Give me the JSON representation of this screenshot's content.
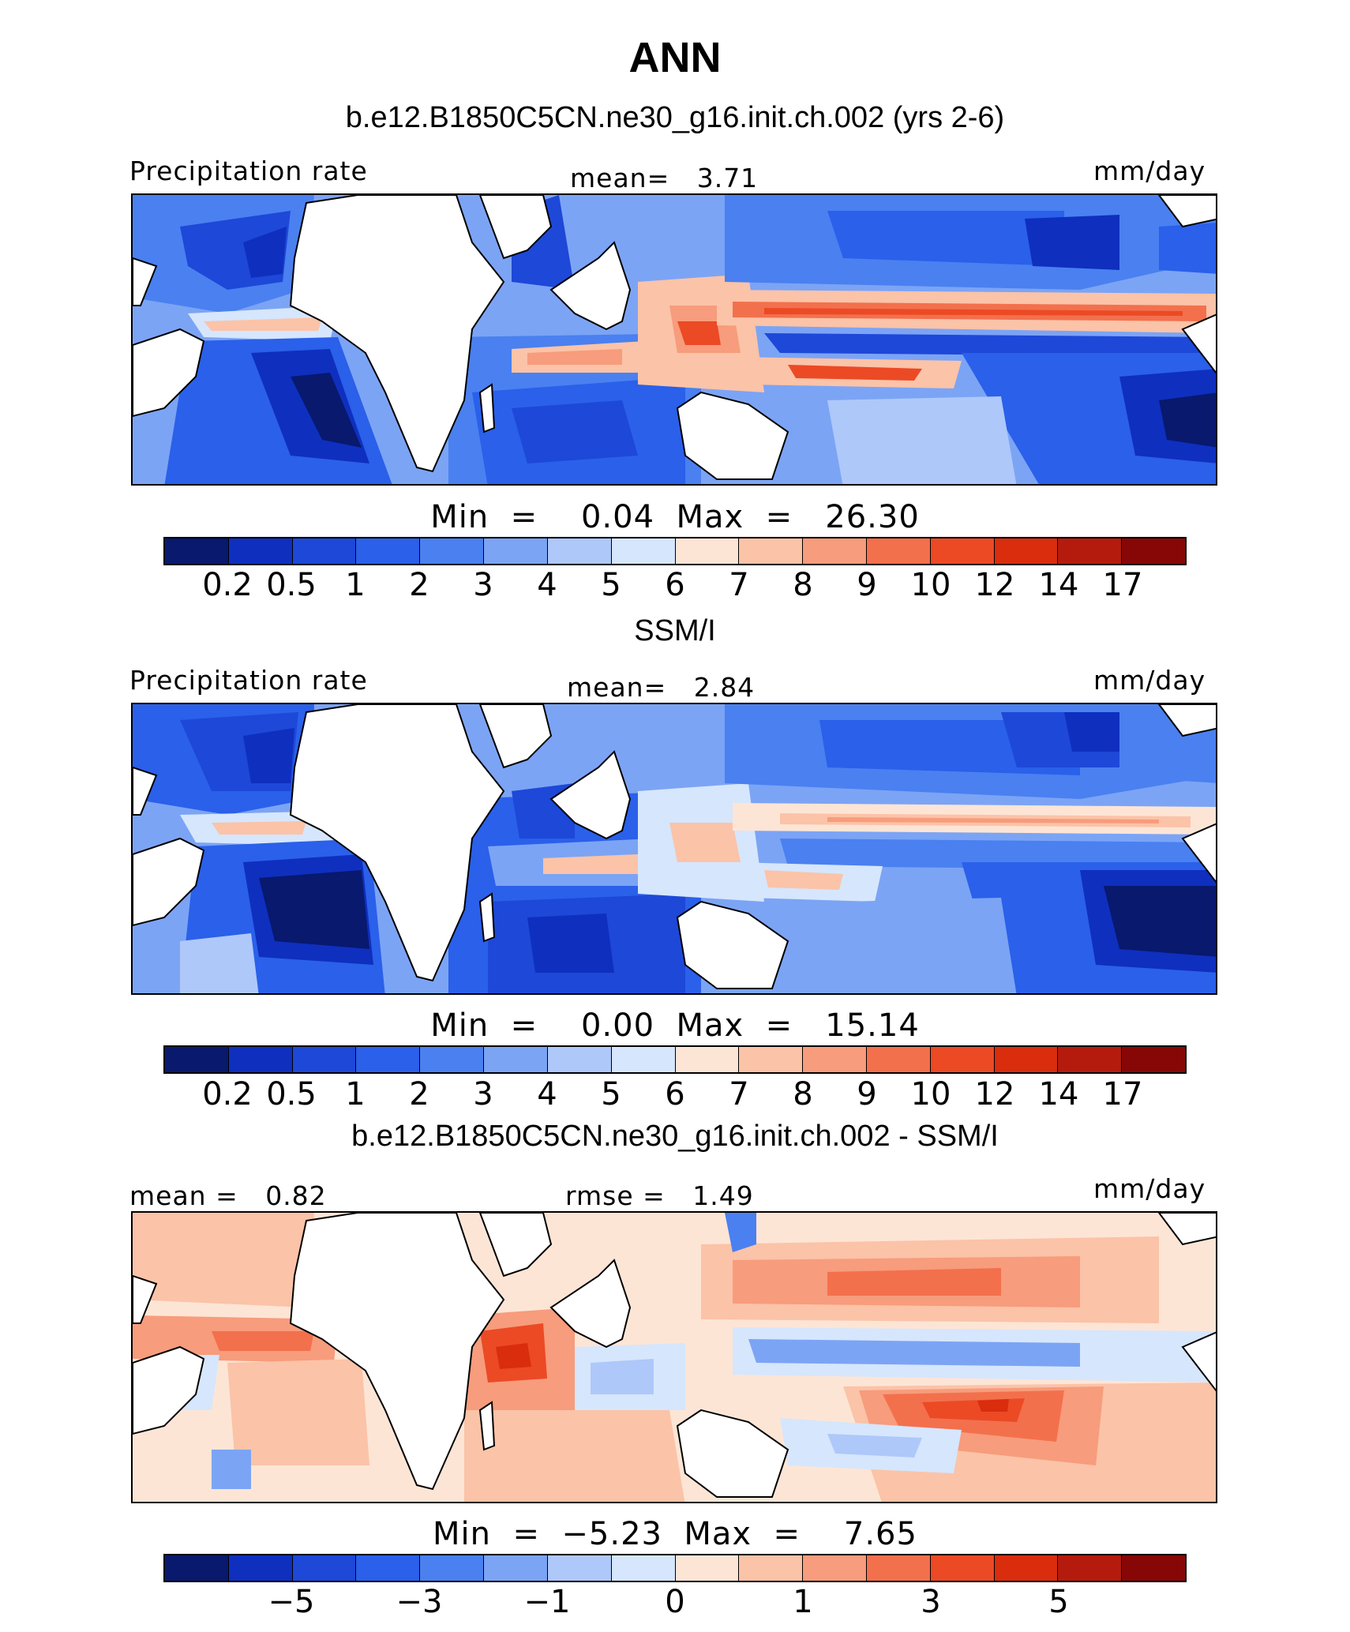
{
  "page": {
    "title": "ANN"
  },
  "panels": [
    {
      "title": "b.e12.B1850C5CN.ne30_g16.init.ch.002 (yrs 2-6)",
      "left_label": "Precipitation rate",
      "center_label": "mean=   3.71",
      "right_label": "mm/day",
      "minmax": "Min  =    0.04  Max  =   26.30",
      "colorbar": {
        "colors": [
          "#08196e",
          "#0f2fbf",
          "#1d48d8",
          "#2a60ea",
          "#4a80f0",
          "#7ca4f5",
          "#aec8fa",
          "#d6e6fc",
          "#fde5d6",
          "#fbc3a8",
          "#f79c7c",
          "#f3704d",
          "#eb4a25",
          "#d92d0e",
          "#b51b0d",
          "#870707"
        ],
        "ticks": [
          "0.2",
          "0.5",
          "1",
          "2",
          "3",
          "4",
          "5",
          "6",
          "7",
          "8",
          "9",
          "10",
          "12",
          "14",
          "17"
        ]
      }
    },
    {
      "title": "SSM/I",
      "left_label": "Precipitation rate",
      "center_label": "mean=   2.84",
      "right_label": "mm/day",
      "minmax": "Min  =    0.00  Max  =   15.14",
      "colorbar": {
        "colors": [
          "#08196e",
          "#0f2fbf",
          "#1d48d8",
          "#2a60ea",
          "#4a80f0",
          "#7ca4f5",
          "#aec8fa",
          "#d6e6fc",
          "#fde5d6",
          "#fbc3a8",
          "#f79c7c",
          "#f3704d",
          "#eb4a25",
          "#d92d0e",
          "#b51b0d",
          "#870707"
        ],
        "ticks": [
          "0.2",
          "0.5",
          "1",
          "2",
          "3",
          "4",
          "5",
          "6",
          "7",
          "8",
          "9",
          "10",
          "12",
          "14",
          "17"
        ]
      }
    },
    {
      "title": "b.e12.B1850C5CN.ne30_g16.init.ch.002 - SSM/I",
      "left_label": "mean =   0.82",
      "center_label": "rmse =   1.49",
      "right_label": "mm/day",
      "minmax": "Min  =  −5.23  Max  =    7.65",
      "colorbar": {
        "colors": [
          "#08196e",
          "#0f2fbf",
          "#1d48d8",
          "#2a60ea",
          "#4a80f0",
          "#7ca4f5",
          "#aec8fa",
          "#d6e6fc",
          "#fde5d6",
          "#fbc3a8",
          "#f79c7c",
          "#f3704d",
          "#eb4a25",
          "#d92d0e",
          "#b51b0d",
          "#870707"
        ],
        "ticks": [
          "−5",
          "−3",
          "−1",
          "0",
          "1",
          "3",
          "5"
        ],
        "tick_boundaries": [
          2,
          4,
          6,
          8,
          10,
          12,
          14
        ]
      }
    }
  ]
}
